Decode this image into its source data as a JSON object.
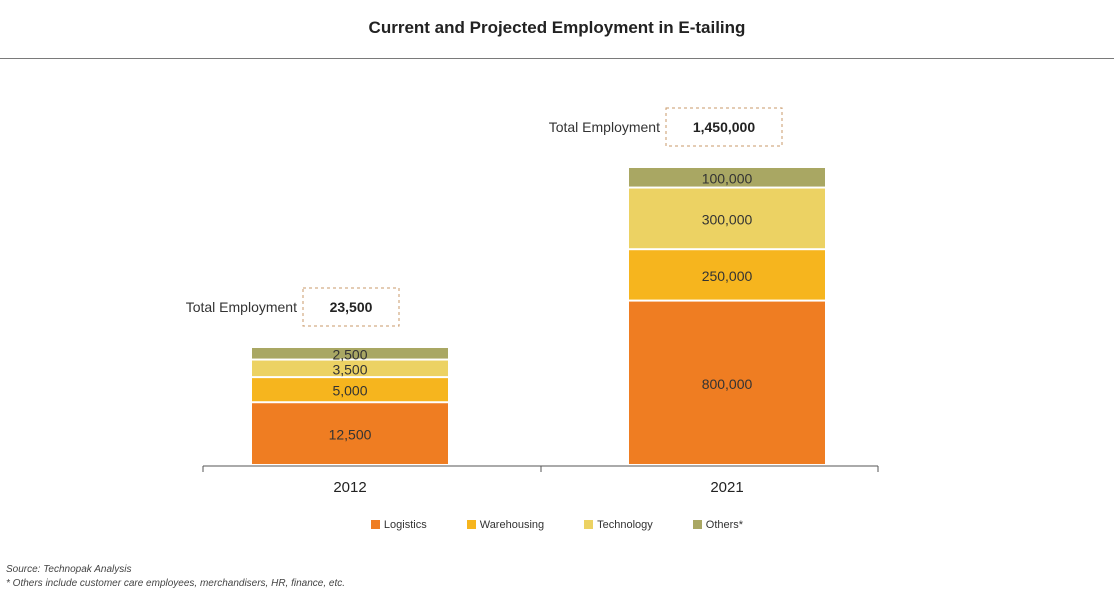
{
  "chart_data": {
    "type": "bar",
    "stacked": true,
    "title": "Current and Projected Employment in E-tailing",
    "categories": [
      "2012",
      "2021"
    ],
    "series": [
      {
        "name": "Logistics",
        "color": "#ef7d22",
        "values": [
          12500,
          800000
        ],
        "labels": [
          "12,500",
          "800,000"
        ]
      },
      {
        "name": "Warehousing",
        "color": "#f6b51e",
        "values": [
          5000,
          250000
        ],
        "labels": [
          "5,000",
          "250,000"
        ]
      },
      {
        "name": "Technology",
        "color": "#ecd263",
        "values": [
          3500,
          300000
        ],
        "labels": [
          "3,500",
          "300,000"
        ]
      },
      {
        "name": "Others*",
        "color": "#a9a763",
        "values": [
          2500,
          100000
        ],
        "labels": [
          "2,500",
          "100,000"
        ]
      }
    ],
    "totals": [
      {
        "label": "Total Employment",
        "value": "23,500"
      },
      {
        "label": "Total Employment",
        "value": "1,450,000"
      }
    ],
    "legend_position": "bottom",
    "grid": false
  },
  "notes": {
    "source": "Source: Technopak Analysis",
    "footnote": "* Others include customer care employees, merchandisers, HR, finance, etc."
  }
}
